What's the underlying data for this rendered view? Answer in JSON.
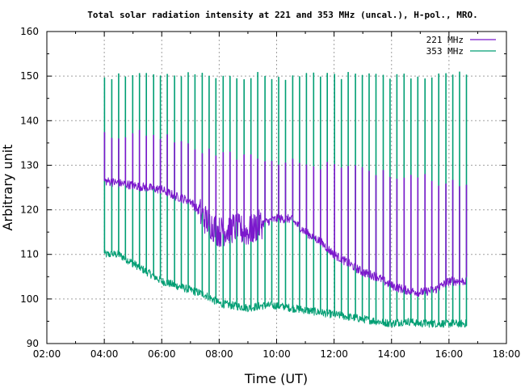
{
  "chart_data": {
    "type": "line",
    "title": "Total solar radiation intensity at 221 and 353 MHz (uncal.), H-pol., MRO.",
    "xlabel": "Time (UT)",
    "ylabel": "Arbitrary unit",
    "xlim": [
      2,
      18
    ],
    "ylim": [
      90,
      160
    ],
    "x_ticks": [
      "02:00",
      "04:00",
      "06:00",
      "08:00",
      "10:00",
      "12:00",
      "14:00",
      "16:00",
      "18:00"
    ],
    "y_ticks": [
      "90",
      "100",
      "110",
      "120",
      "130",
      "140",
      "150",
      "160"
    ],
    "grid": true,
    "legend_position": "top-right",
    "series": [
      {
        "name": "221 MHz",
        "color": "#7b18cc",
        "x": [
          4.0,
          4.5,
          5.0,
          5.5,
          6.0,
          6.5,
          7.0,
          7.5,
          8.0,
          8.5,
          9.0,
          9.5,
          10.0,
          10.5,
          11.0,
          11.5,
          12.0,
          12.5,
          13.0,
          13.5,
          14.0,
          14.5,
          15.0,
          15.5,
          16.0,
          16.6
        ],
        "values": [
          126.5,
          126,
          125.5,
          125,
          124.5,
          123,
          122,
          118,
          115,
          116,
          115,
          117,
          118,
          118,
          115,
          113,
          110,
          108,
          106,
          105,
          103,
          102,
          101.5,
          102,
          104,
          104
        ],
        "spike_peaks": [
          137,
          136,
          137,
          136,
          136,
          135,
          134,
          133,
          133,
          132,
          132,
          131,
          131,
          131,
          130,
          130,
          130,
          129,
          129,
          128,
          128,
          127,
          127,
          127,
          126,
          126
        ]
      },
      {
        "name": "353 MHz",
        "color": "#009e73",
        "x": [
          4.0,
          4.5,
          5.0,
          5.5,
          6.0,
          6.5,
          7.0,
          7.5,
          8.0,
          8.5,
          9.0,
          9.5,
          10.0,
          10.5,
          11.0,
          11.5,
          12.0,
          12.5,
          13.0,
          13.5,
          14.0,
          14.5,
          15.0,
          15.5,
          16.0,
          16.6
        ],
        "values": [
          110,
          110,
          108,
          106,
          104,
          103,
          102,
          101,
          99,
          98.5,
          98,
          98.5,
          98.5,
          98,
          97.5,
          97,
          96.5,
          96,
          95.5,
          95,
          94.5,
          95,
          94.5,
          94.5,
          94.5,
          94.5
        ],
        "spike_peaks": [
          150,
          150,
          150,
          150,
          150,
          150,
          150,
          150,
          150,
          150,
          150,
          150,
          150,
          150,
          150,
          150,
          150,
          150,
          150,
          150,
          150,
          150,
          150,
          150,
          150,
          150
        ]
      }
    ]
  }
}
